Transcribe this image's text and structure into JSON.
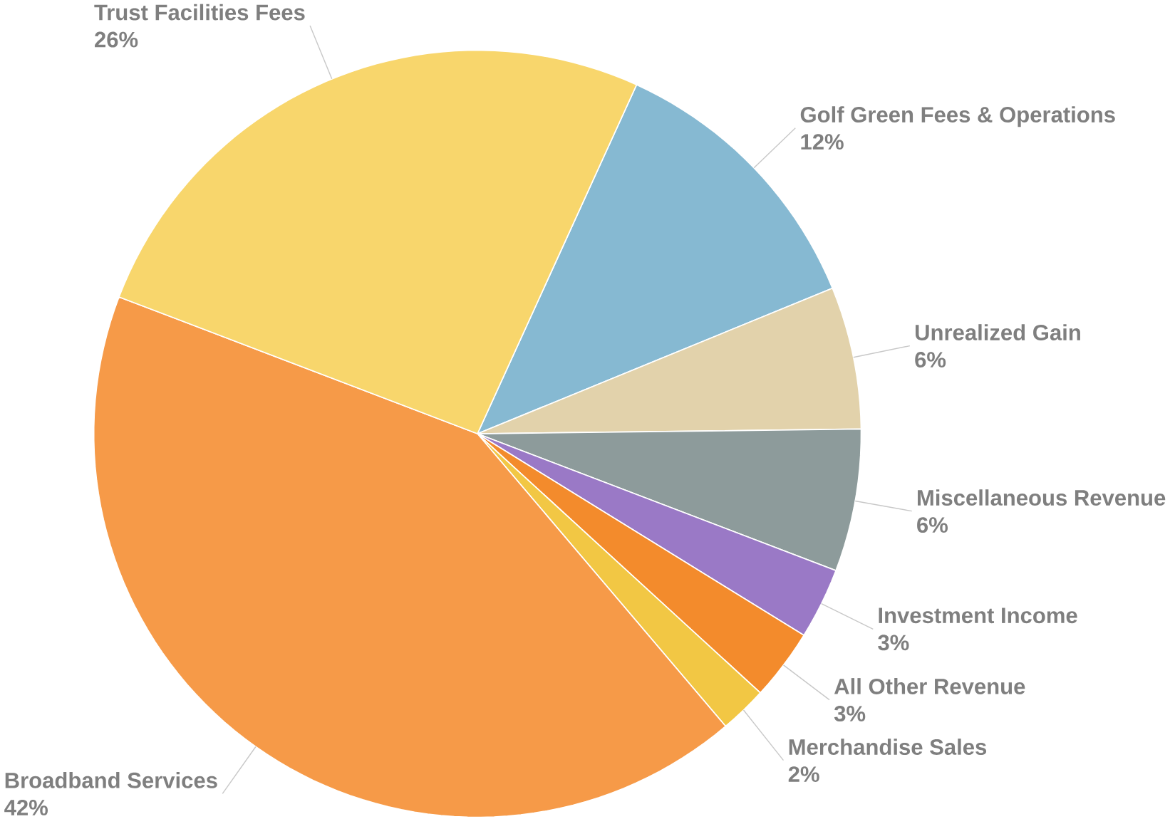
{
  "chart_data": {
    "type": "pie",
    "categories": [
      "Golf Green Fees & Operations",
      "Unrealized Gain",
      "Miscellaneous Revenue",
      "Investment Income",
      "All Other Revenue",
      "Merchandise Sales",
      "Broadband Services",
      "Trust Facilities Fees"
    ],
    "values": [
      12,
      6,
      6,
      3,
      3,
      2,
      42,
      26
    ],
    "value_labels": [
      "12%",
      "6%",
      "6%",
      "3%",
      "3%",
      "2%",
      "42%",
      "26%"
    ],
    "colors": [
      "#86b9d2",
      "#e2d2ab",
      "#8d9b9b",
      "#9a79c6",
      "#f38b2c",
      "#f2c744",
      "#f69a48",
      "#f8d66c"
    ]
  }
}
